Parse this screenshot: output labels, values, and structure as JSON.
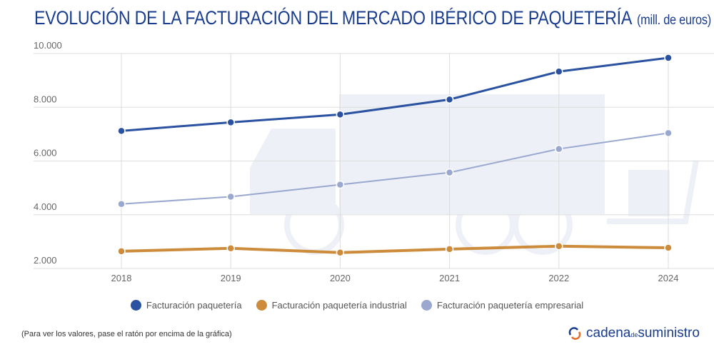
{
  "title": "EVOLUCIÓN DE LA FACTURACIÓN DEL MERCADO IBÉRICO DE PAQUETERÍA",
  "title_unit": "(mill. de euros)",
  "note": "(Para ver los valores, pase el ratón por encima de la gráfica)",
  "logo": {
    "part1": "cadena",
    "part2": "de",
    "part3": "suministro"
  },
  "chart_data": {
    "type": "line",
    "categories": [
      "2018",
      "2019",
      "2020",
      "2021",
      "2022",
      "2024"
    ],
    "ylim": [
      2000,
      10000
    ],
    "yticks": [
      2000,
      4000,
      6000,
      8000,
      10000
    ],
    "ytick_labels": [
      "2.000",
      "4.000",
      "6.000",
      "8.000",
      "10.000"
    ],
    "grid": true,
    "legend_placement": "bottom",
    "series": [
      {
        "name": "Facturación paquetería",
        "color": "#2a52a0",
        "values": [
          7120,
          7440,
          7730,
          8290,
          9330,
          9840
        ]
      },
      {
        "name": "Facturación paquetería industrial",
        "color": "#cc8c3c",
        "values": [
          2640,
          2750,
          2590,
          2720,
          2830,
          2770
        ]
      },
      {
        "name": "Facturación paquetería empresarial",
        "color": "#9aa8d0",
        "values": [
          4400,
          4670,
          5120,
          5570,
          6450,
          7040
        ]
      }
    ]
  }
}
